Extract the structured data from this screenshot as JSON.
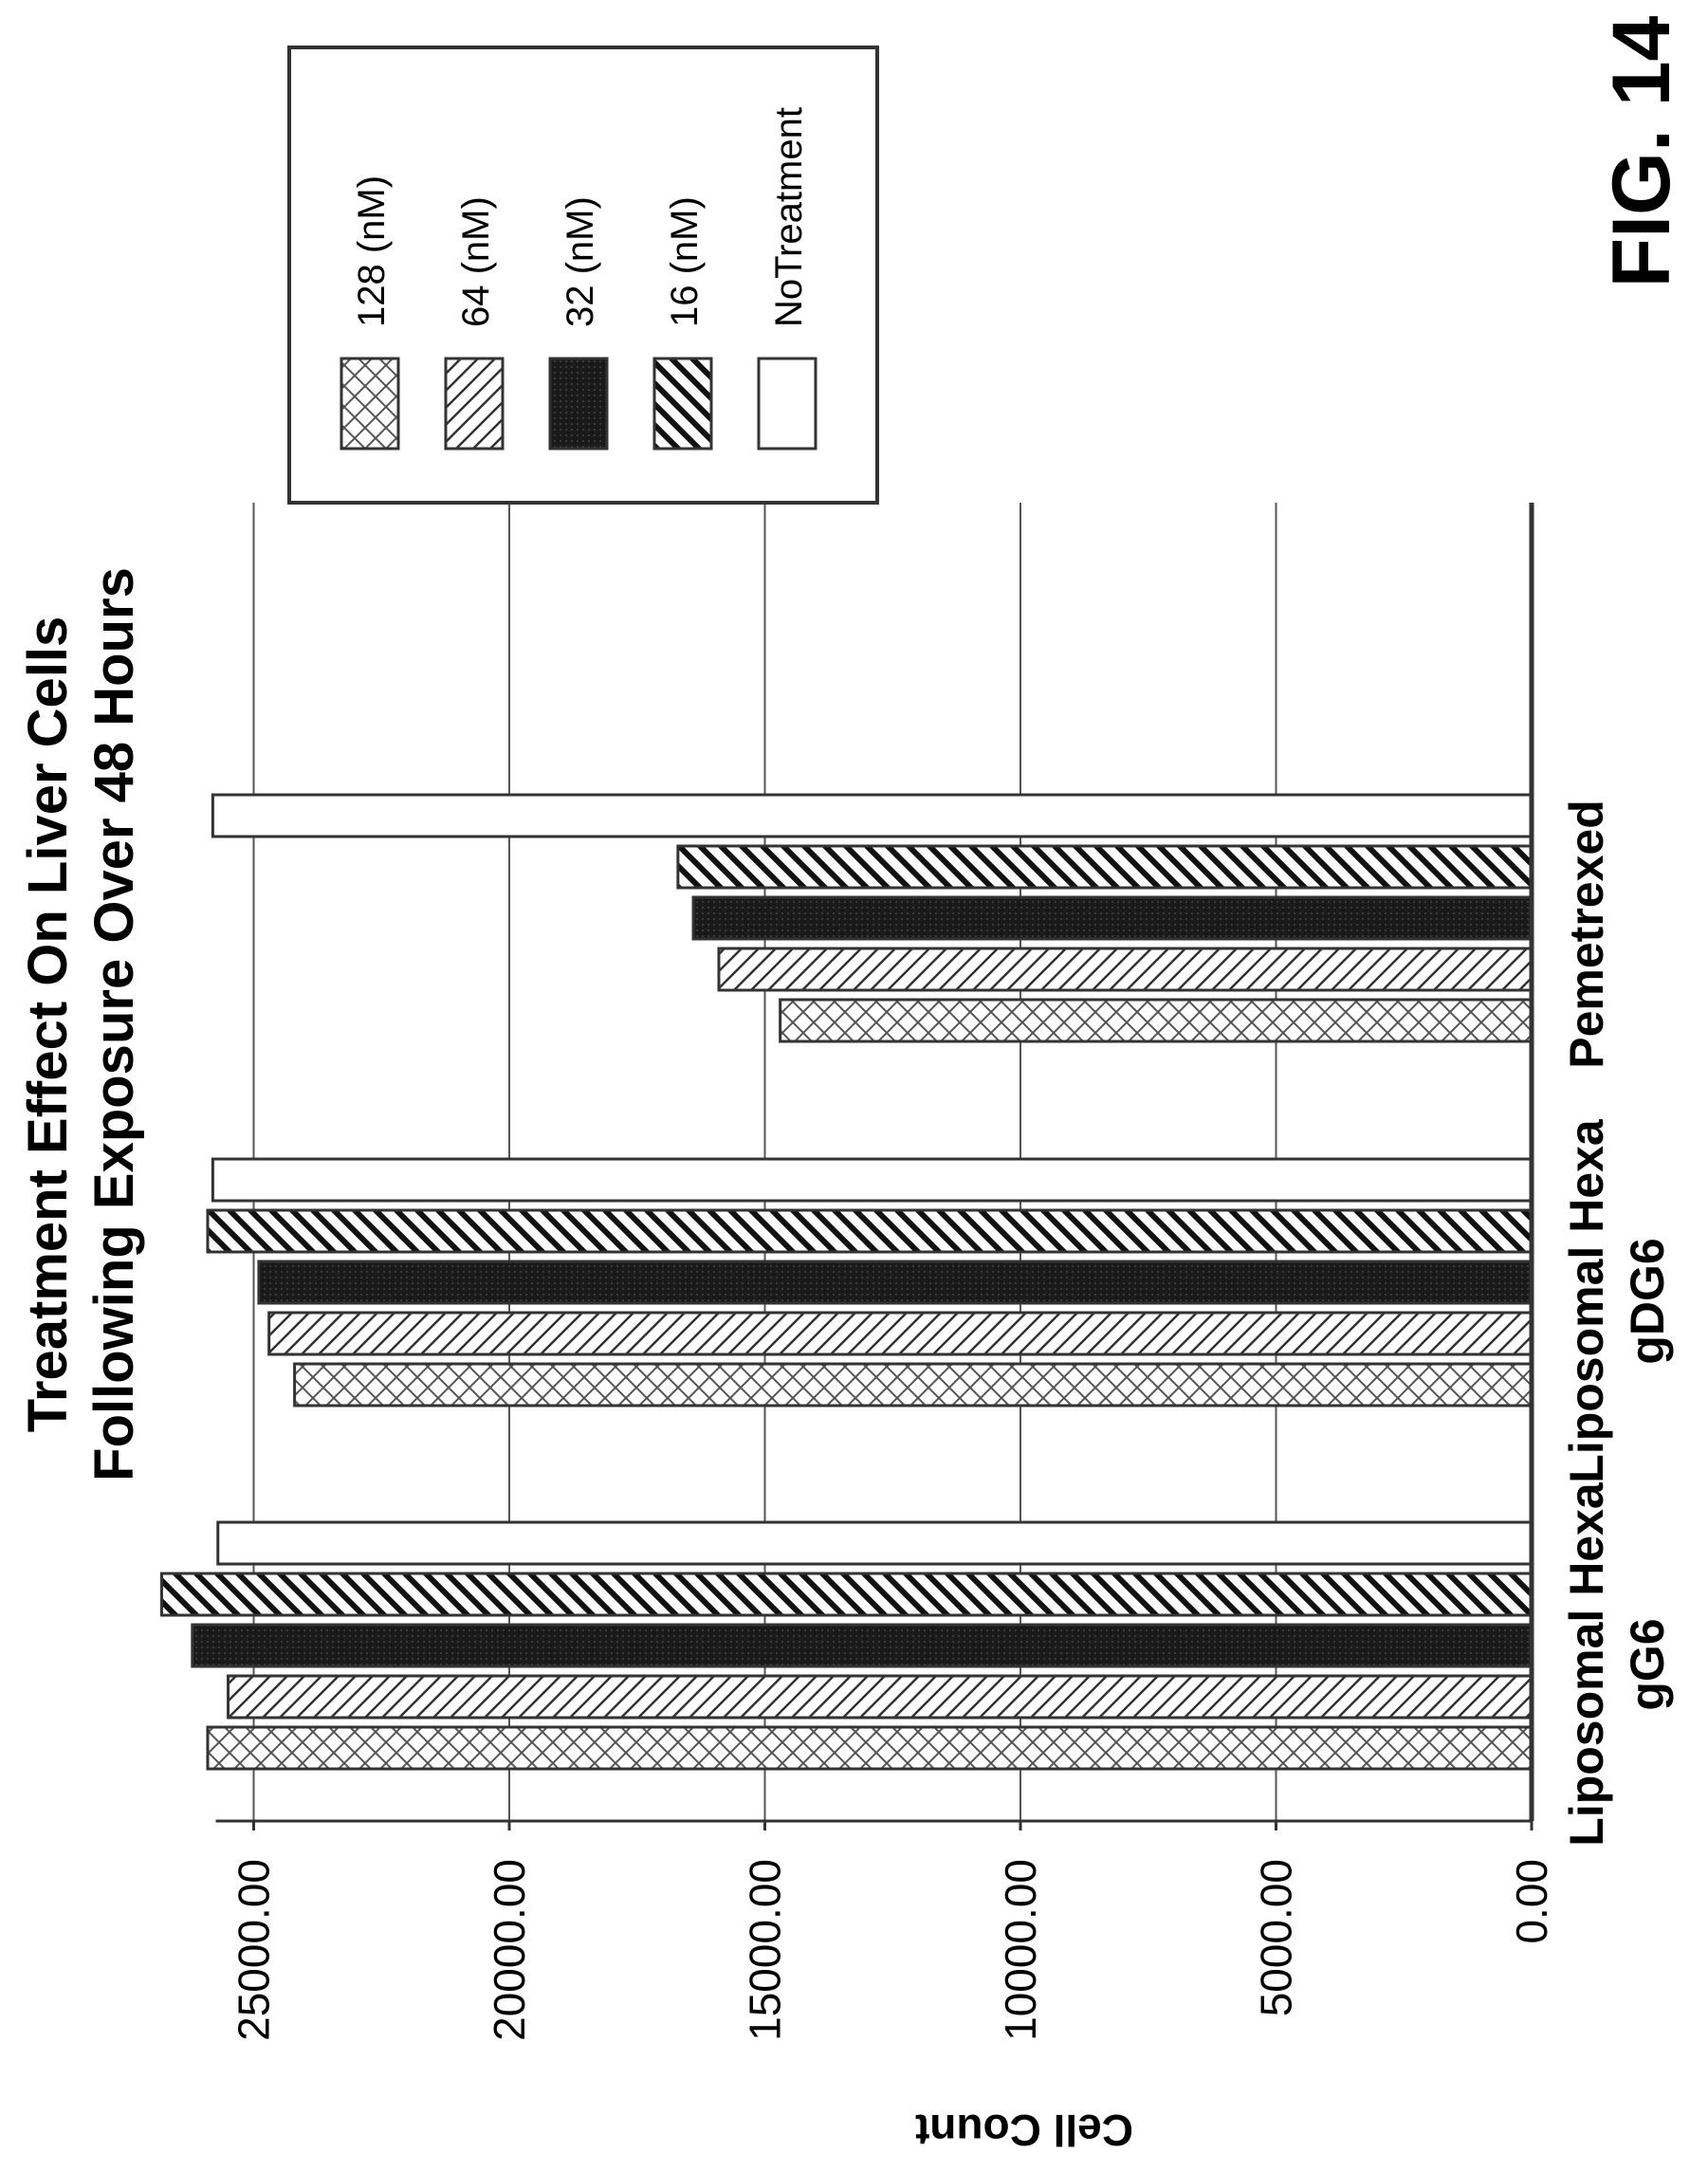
{
  "figure_label": "FIG. 14",
  "chart_data": {
    "type": "bar",
    "title": [
      "Treatment Effect On Liver Cells",
      "Following Exposure Over 48 Hours"
    ],
    "categories": [
      [
        "Liposomal Hexa",
        "gG6"
      ],
      [
        "Liposomal Hexa",
        "gDG6"
      ],
      [
        "Pemetrexed"
      ]
    ],
    "ylabel": "Cell Count",
    "xlabel": "",
    "ylim": [
      0,
      25000
    ],
    "yticks": [
      0,
      5000,
      10000,
      15000,
      20000,
      25000
    ],
    "ytick_labels": [
      "0.00",
      "5000.00",
      "10000.00",
      "15000.00",
      "20000.00",
      "25000.00"
    ],
    "grid": true,
    "legend_position": "top-right",
    "orientation": "rotated 90° counter-clockwise",
    "series": [
      {
        "name": "128 (nM)",
        "pattern": "crosshatch",
        "values": [
          25900,
          24200,
          14700
        ]
      },
      {
        "name": "64 (nM)",
        "pattern": "diagonal-forward",
        "values": [
          25500,
          24700,
          15900
        ]
      },
      {
        "name": "32 (nM)",
        "pattern": "solid-dark",
        "values": [
          26200,
          24900,
          16400
        ]
      },
      {
        "name": "16 (nM)",
        "pattern": "diagonal-backward",
        "values": [
          26800,
          25900,
          16700
        ]
      },
      {
        "name": "NoTreatment",
        "pattern": "white",
        "values": [
          25700,
          25800,
          25800
        ]
      }
    ]
  }
}
